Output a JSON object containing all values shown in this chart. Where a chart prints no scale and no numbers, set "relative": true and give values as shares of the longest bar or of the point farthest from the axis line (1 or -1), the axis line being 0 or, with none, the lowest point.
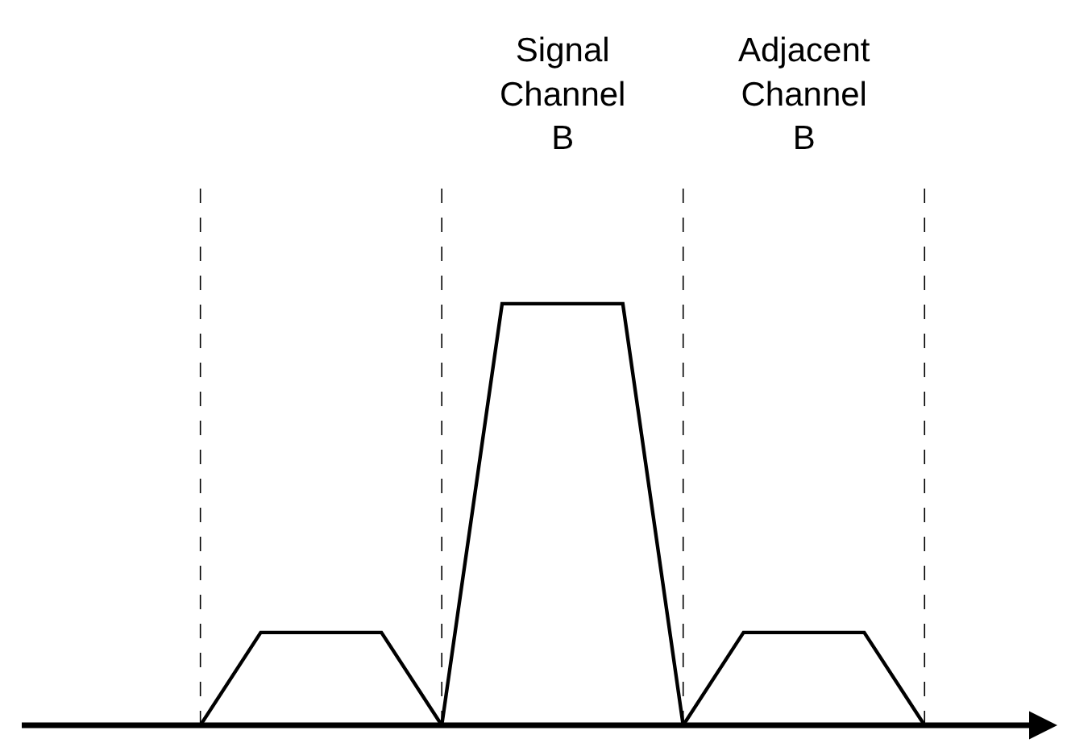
{
  "chart_data": {
    "type": "line",
    "relative": true,
    "grid": "x",
    "marker": "none",
    "line_style": "solid",
    "categories": [
      null,
      null,
      null,
      null,
      null,
      null,
      null,
      null,
      null,
      null,
      null,
      null,
      null
    ],
    "series": [
      {
        "color": "#000000",
        "values": [
          0,
          0.22,
          0.22,
          0.22,
          0,
          1,
          1,
          1,
          0,
          0.22,
          0.22,
          0.22,
          0
        ]
      }
    ],
    "annotations": [
      "Signal\nChannel\nB",
      "Adjacent\nChannel\nB"
    ]
  }
}
